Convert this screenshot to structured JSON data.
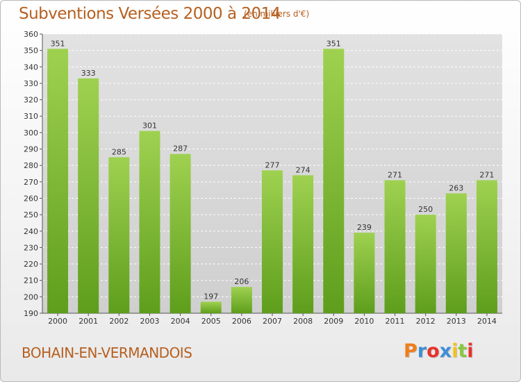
{
  "header": {
    "title": "Subventions Versées 2000 à 2014",
    "subtitle": "(en milliers d'€)"
  },
  "footer": {
    "location": "BOHAIN-EN-VERMANDOIS",
    "logo": "Proxiti",
    "logo_colors": [
      "#f07d1a",
      "#3d8fd6",
      "#e8322b",
      "#3d8fd6",
      "#f2c21b",
      "#8cc63f",
      "#e8322b"
    ]
  },
  "colors": {
    "bar_top": "#9fd150",
    "bar_bottom": "#5e9e1c",
    "grid": "#ffffff",
    "plot_bg": "#d9d9d9",
    "text_accent": "#b65f1f"
  },
  "chart_data": {
    "type": "bar",
    "title": "Subventions Versées 2000 à 2014",
    "subtitle": "(en milliers d'€)",
    "xlabel": "",
    "ylabel": "",
    "categories": [
      "2000",
      "2001",
      "2002",
      "2003",
      "2004",
      "2005",
      "2006",
      "2007",
      "2008",
      "2009",
      "2010",
      "2011",
      "2012",
      "2013",
      "2014"
    ],
    "values": [
      351,
      333,
      285,
      301,
      287,
      197,
      206,
      277,
      274,
      351,
      239,
      271,
      250,
      263,
      271
    ],
    "ylim": [
      190,
      360
    ],
    "yticks": [
      190,
      200,
      210,
      220,
      230,
      240,
      250,
      260,
      270,
      280,
      290,
      300,
      310,
      320,
      330,
      340,
      350,
      360
    ],
    "grid": true,
    "data_labels": true
  }
}
